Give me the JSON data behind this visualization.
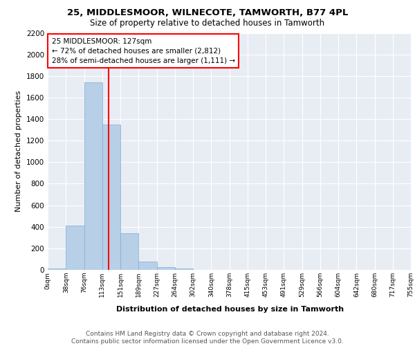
{
  "title1": "25, MIDDLESMOOR, WILNECOTE, TAMWORTH, B77 4PL",
  "title2": "Size of property relative to detached houses in Tamworth",
  "xlabel": "Distribution of detached houses by size in Tamworth",
  "ylabel": "Number of detached properties",
  "bar_values": [
    10,
    410,
    1740,
    1350,
    340,
    80,
    25,
    15,
    0,
    0,
    0,
    0,
    0,
    0,
    0,
    0,
    0,
    0,
    0,
    0
  ],
  "bar_color": "#b8cfe8",
  "bar_edge_color": "#7aafd4",
  "background_color": "#e8edf4",
  "grid_color": "#ffffff",
  "annotation_text": "25 MIDDLESMOOR: 127sqm\n← 72% of detached houses are smaller (2,812)\n28% of semi-detached houses are larger (1,111) →",
  "red_line_x": 127,
  "ylim": [
    0,
    2200
  ],
  "yticks": [
    0,
    200,
    400,
    600,
    800,
    1000,
    1200,
    1400,
    1600,
    1800,
    2000,
    2200
  ],
  "bin_edges": [
    0,
    38,
    76,
    113,
    151,
    189,
    227,
    264,
    302,
    340,
    378,
    415,
    453,
    491,
    529,
    566,
    604,
    642,
    680,
    717,
    755
  ],
  "tick_labels": [
    "0sqm",
    "38sqm",
    "76sqm",
    "113sqm",
    "151sqm",
    "189sqm",
    "227sqm",
    "264sqm",
    "302sqm",
    "340sqm",
    "378sqm",
    "415sqm",
    "453sqm",
    "491sqm",
    "529sqm",
    "566sqm",
    "604sqm",
    "642sqm",
    "680sqm",
    "717sqm",
    "755sqm"
  ],
  "footer_text": "Contains HM Land Registry data © Crown copyright and database right 2024.\nContains public sector information licensed under the Open Government Licence v3.0.",
  "title1_fontsize": 9.5,
  "title2_fontsize": 8.5,
  "ylabel_fontsize": 8,
  "xlabel_fontsize": 8,
  "tick_fontsize": 6.5,
  "footer_fontsize": 6.5,
  "annot_fontsize": 7.5
}
